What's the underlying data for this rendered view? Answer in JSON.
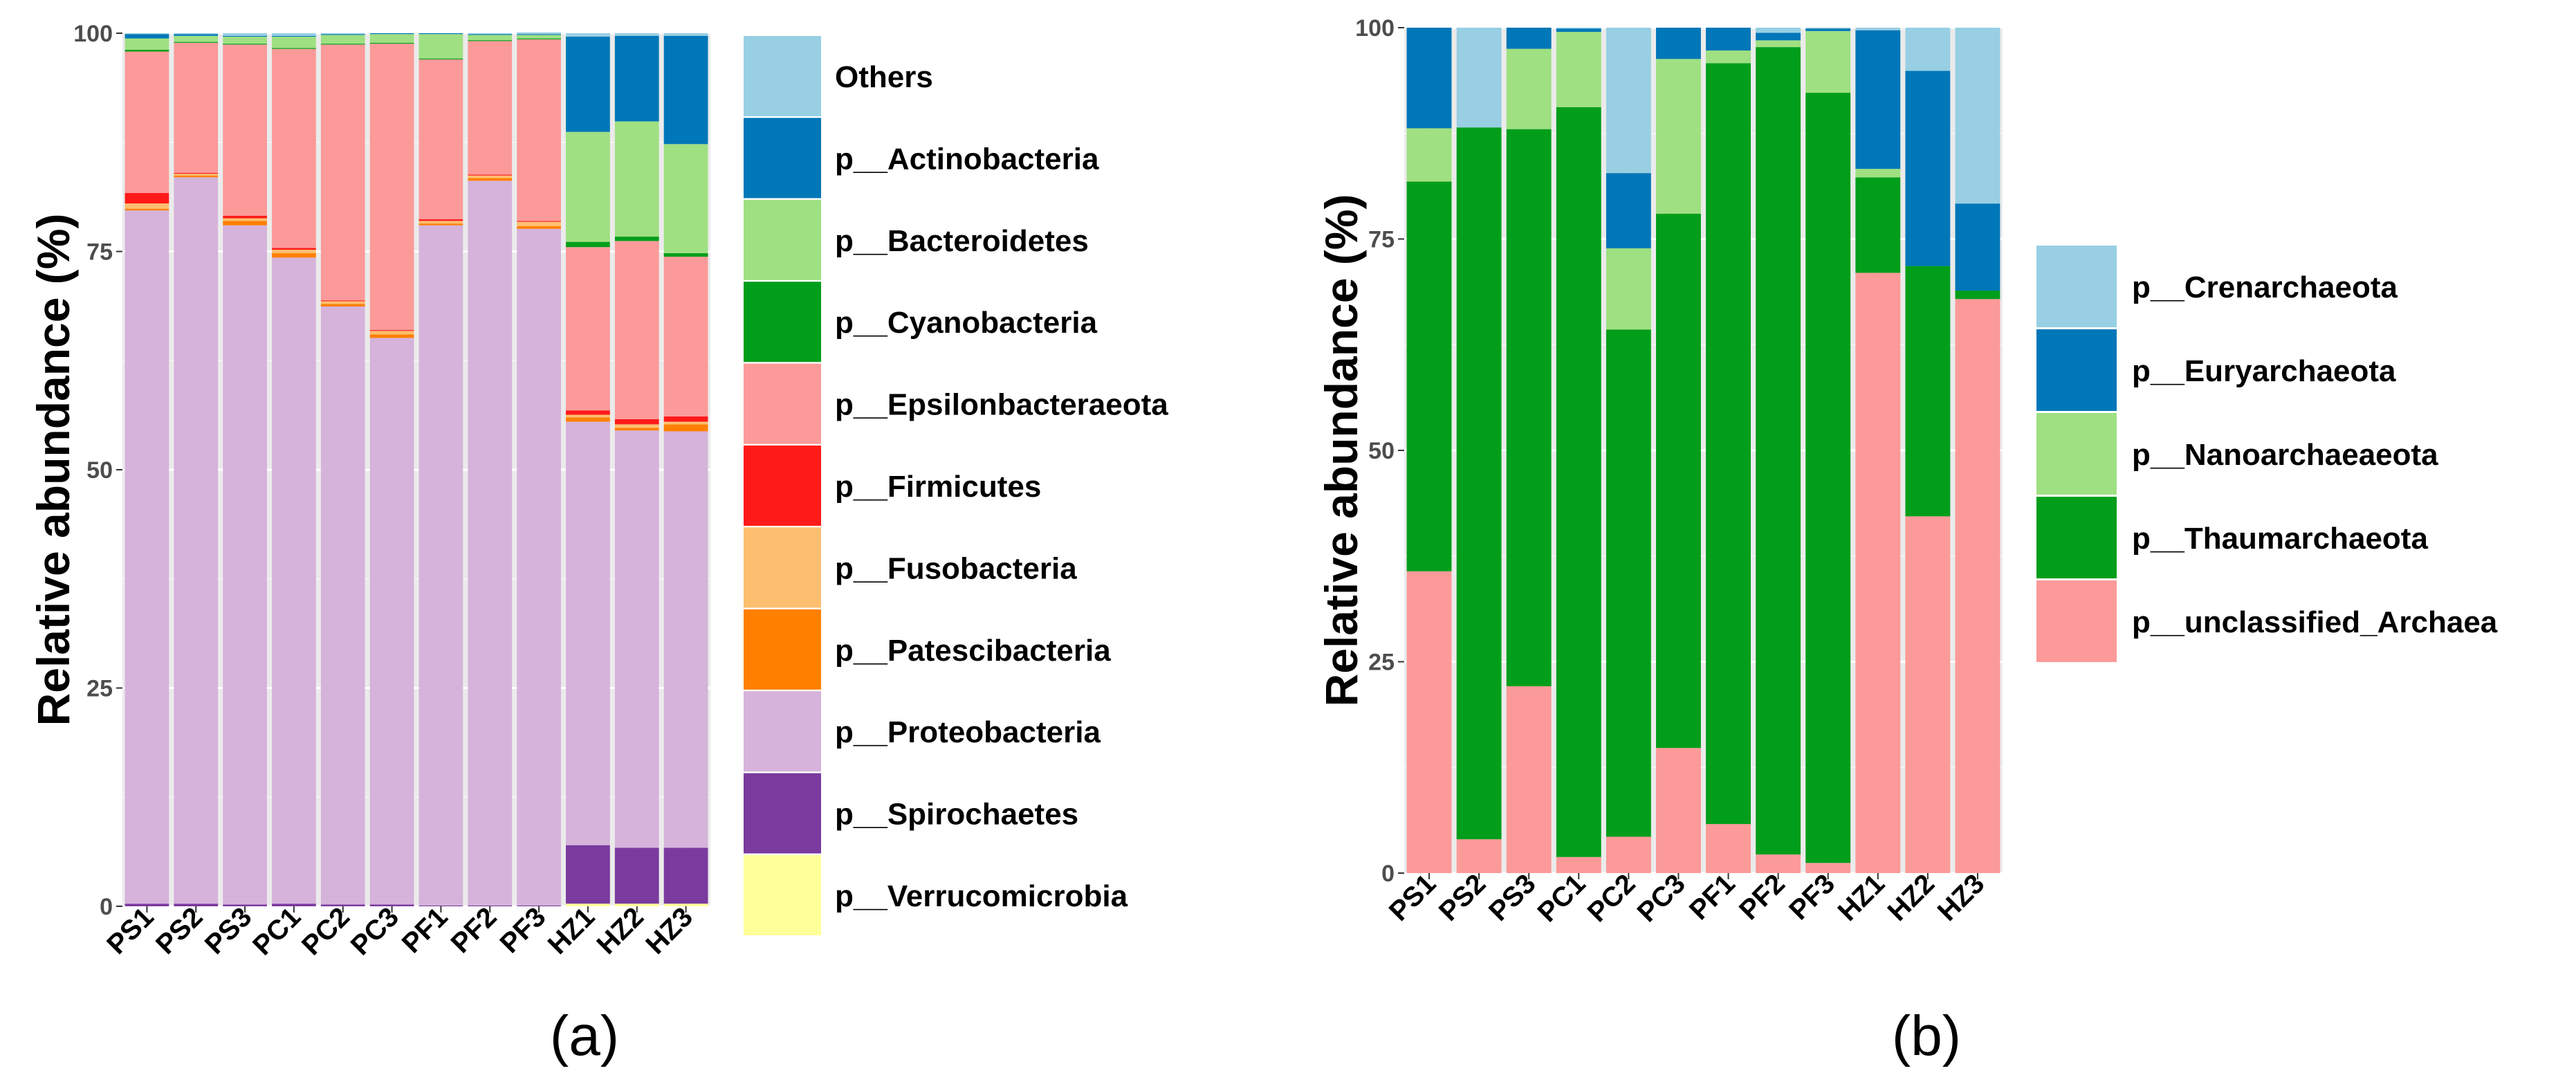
{
  "chart_data": [
    {
      "type": "bar",
      "stacked": true,
      "panel_label": "(a)",
      "ylabel": "Relative abundance (%)",
      "xlabel": "",
      "ylim": [
        0,
        100
      ],
      "yticks": [
        "0",
        "25",
        "50",
        "75",
        "100"
      ],
      "categories": [
        "PS1",
        "PS2",
        "PS3",
        "PC1",
        "PC2",
        "PC3",
        "PF1",
        "PF2",
        "PF3",
        "HZ1",
        "HZ2",
        "HZ3"
      ],
      "series": [
        {
          "name": "p__Verrucomicrobia",
          "color": "#FFFF99",
          "values": [
            0,
            0,
            0,
            0,
            0,
            0,
            0,
            0,
            0,
            0.3,
            0.3,
            0.3
          ]
        },
        {
          "name": "p__Spirochaetes",
          "color": "#7A3A9E",
          "values": [
            0.3,
            0.3,
            0.2,
            0.3,
            0.2,
            0.2,
            0.1,
            0.1,
            0.1,
            6.7,
            6.4,
            6.4
          ]
        },
        {
          "name": "p__Proteobacteria",
          "color": "#D5B3DA",
          "values": [
            79.4,
            83.2,
            77.8,
            74.0,
            68.5,
            64.9,
            77.9,
            83.0,
            77.5,
            48.5,
            47.8,
            47.7
          ]
        },
        {
          "name": "p__Patescibacteria",
          "color": "#FF8000",
          "values": [
            0.2,
            0.2,
            0.5,
            0.5,
            0.3,
            0.4,
            0.2,
            0.3,
            0.3,
            0.5,
            0.3,
            0.8
          ]
        },
        {
          "name": "p__Fusobacteria",
          "color": "#FDBF6F",
          "values": [
            0.6,
            0.2,
            0.3,
            0.4,
            0.3,
            0.4,
            0.3,
            0.3,
            0.5,
            0.3,
            0.4,
            0.3
          ]
        },
        {
          "name": "p__Firmicutes",
          "color": "#FF1A1A",
          "values": [
            1.2,
            0.1,
            0.3,
            0.2,
            0.1,
            0.1,
            0.2,
            0.1,
            0.1,
            0.5,
            0.6,
            0.6
          ]
        },
        {
          "name": "p__Epsilonbacteraeota",
          "color": "#FB9A99",
          "values": [
            16.2,
            14.9,
            19.6,
            22.8,
            29.3,
            32.8,
            18.3,
            15.3,
            20.8,
            18.7,
            20.4,
            18.3
          ]
        },
        {
          "name": "p__Cyanobacteria",
          "color": "#009E1A",
          "values": [
            0.2,
            0.1,
            0.1,
            0.1,
            0.1,
            0.1,
            0.1,
            0.1,
            0.1,
            0.6,
            0.5,
            0.4
          ]
        },
        {
          "name": "p__Bacteroidetes",
          "color": "#9FE082",
          "values": [
            1.3,
            0.7,
            0.8,
            1.3,
            1.0,
            1.0,
            2.8,
            0.6,
            0.4,
            12.6,
            13.2,
            12.5
          ]
        },
        {
          "name": "p__Actinobacteria",
          "color": "#0077B8",
          "values": [
            0.5,
            0.2,
            0.1,
            0.1,
            0.1,
            0.1,
            0.1,
            0.1,
            0.1,
            10.9,
            9.8,
            12.4
          ]
        },
        {
          "name": "Others",
          "color": "#98CFE3",
          "values": [
            0.1,
            0.1,
            0.3,
            0.3,
            0.1,
            0.0,
            0.0,
            0.1,
            0.2,
            0.4,
            0.3,
            0.3
          ]
        }
      ],
      "legend": [
        "Others",
        "p__Actinobacteria",
        "p__Bacteroidetes",
        "p__Cyanobacteria",
        "p__Epsilonbacteraeota",
        "p__Firmicutes",
        "p__Fusobacteria",
        "p__Patescibacteria",
        "p__Proteobacteria",
        "p__Spirochaetes",
        "p__Verrucomicrobia"
      ],
      "legend_colors": [
        "#98CFE3",
        "#0077B8",
        "#9FE082",
        "#009E1A",
        "#FB9A99",
        "#FF1A1A",
        "#FDBF6F",
        "#FF8000",
        "#D5B3DA",
        "#7A3A9E",
        "#FFFF99"
      ],
      "grid": true,
      "legend_position": "right"
    },
    {
      "type": "bar",
      "stacked": true,
      "panel_label": "(b)",
      "ylabel": "Relative abundance (%)",
      "xlabel": "",
      "ylim": [
        0,
        100
      ],
      "yticks": [
        "0",
        "25",
        "50",
        "75",
        "100"
      ],
      "categories": [
        "PS1",
        "PS2",
        "PS3",
        "PC1",
        "PC2",
        "PC3",
        "PF1",
        "PF2",
        "PF3",
        "HZ1",
        "HZ2",
        "HZ3"
      ],
      "series": [
        {
          "name": "p__unclassified_Archaea",
          "color": "#FB9A99",
          "values": [
            35.7,
            4.0,
            22.1,
            1.9,
            4.3,
            14.8,
            5.8,
            2.2,
            1.2,
            71.0,
            42.2,
            67.9
          ]
        },
        {
          "name": "p__Thaumarchaeota",
          "color": "#009E1A",
          "values": [
            46.1,
            84.2,
            65.9,
            88.7,
            60.0,
            63.2,
            90.0,
            95.5,
            91.1,
            11.3,
            29.6,
            1.0
          ]
        },
        {
          "name": "p__Nanoarchaeaeota",
          "color": "#9FE082",
          "values": [
            6.3,
            0.0,
            9.5,
            8.9,
            9.6,
            18.3,
            1.5,
            0.8,
            7.3,
            1.0,
            0.0,
            0.0
          ]
        },
        {
          "name": "p__Euryarchaeota",
          "color": "#0077B8",
          "values": [
            11.9,
            0.0,
            2.5,
            0.4,
            8.9,
            3.7,
            2.7,
            0.9,
            0.3,
            16.4,
            23.1,
            10.3
          ]
        },
        {
          "name": "p__Crenarchaeota",
          "color": "#98CFE3",
          "values": [
            0.0,
            11.8,
            0.0,
            0.1,
            17.2,
            0.0,
            0.0,
            0.6,
            0.1,
            0.3,
            5.1,
            20.8
          ]
        }
      ],
      "legend": [
        "p__Crenarchaeota",
        "p__Euryarchaeota",
        "p__Nanoarchaeaeota",
        "p__Thaumarchaeota",
        "p__unclassified_Archaea"
      ],
      "legend_colors": [
        "#98CFE3",
        "#0077B8",
        "#9FE082",
        "#009E1A",
        "#FB9A99"
      ],
      "grid": true,
      "legend_position": "right"
    }
  ]
}
